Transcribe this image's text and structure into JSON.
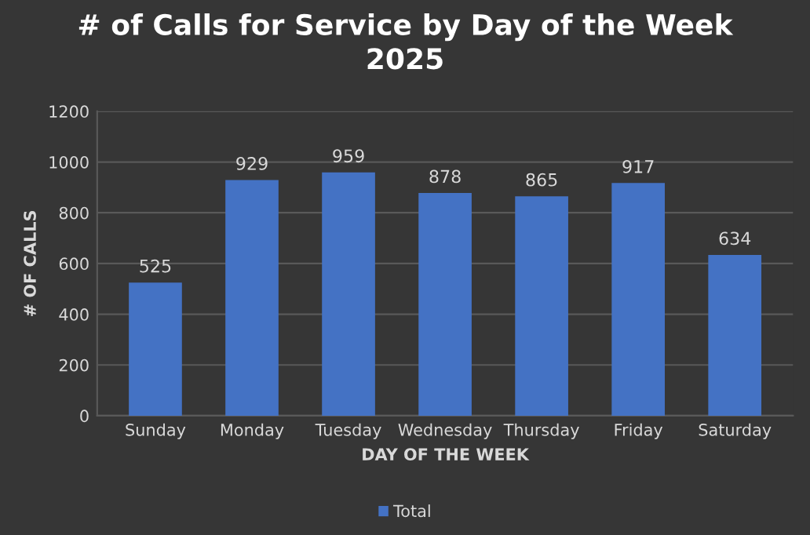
{
  "chart_data": {
    "type": "bar",
    "title": "# of Calls for Service by Day of the Week\n2025",
    "xlabel": "DAY OF THE WEEK",
    "ylabel": "# OF CALLS",
    "categories": [
      "Sunday",
      "Monday",
      "Tuesday",
      "Wednesday",
      "Thursday",
      "Friday",
      "Saturday"
    ],
    "series": [
      {
        "name": "Total",
        "color": "#4472c4",
        "values": [
          525,
          929,
          959,
          878,
          865,
          917,
          634
        ]
      }
    ],
    "ylim": [
      0,
      1200
    ],
    "yticks": [
      0,
      200,
      400,
      600,
      800,
      1000,
      1200
    ],
    "grid": "y",
    "legend": "bottom",
    "data_labels": true
  }
}
